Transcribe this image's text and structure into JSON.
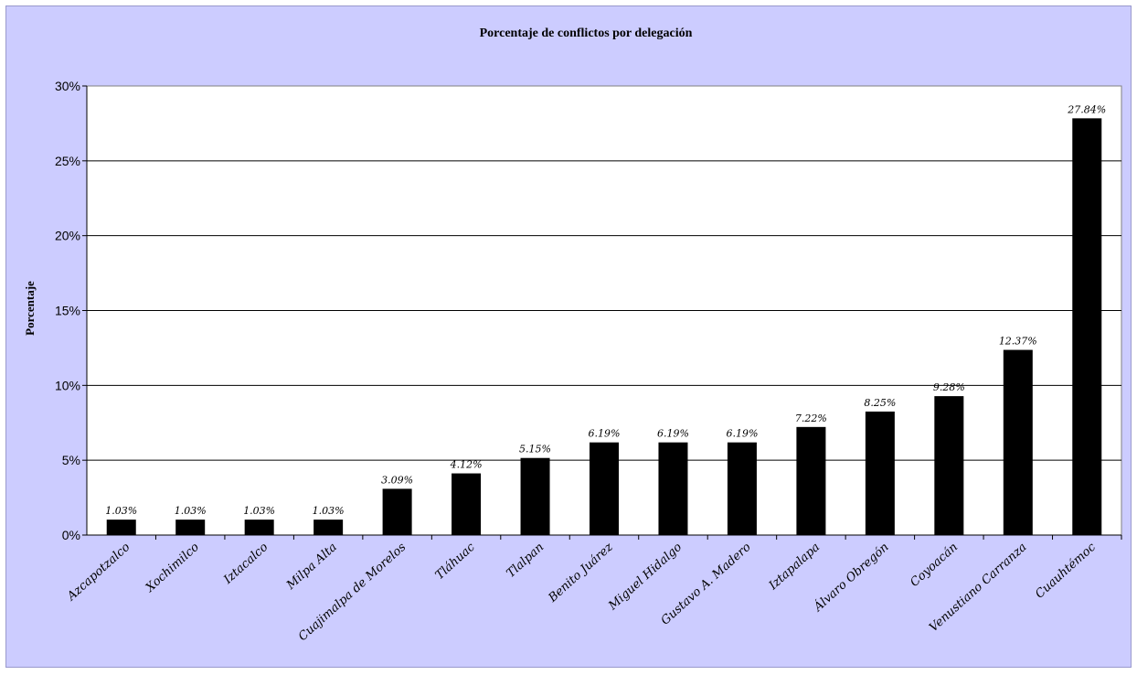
{
  "chart_data": {
    "type": "bar",
    "title": "Porcentaje de conflictos por delegación",
    "xlabel": "",
    "ylabel": "Porcentaje",
    "ylim": [
      0,
      30
    ],
    "yticks": [
      "0%",
      "5%",
      "10%",
      "15%",
      "20%",
      "25%",
      "30%"
    ],
    "grid": true,
    "legend": "none",
    "bar_color": "#000000",
    "background_color": "#ccccff",
    "plot_background_color": "#ffffff",
    "categories": [
      "Azcapotzalco",
      "Xochimilco",
      "Iztacalco",
      "Milpa Alta",
      "Cuajimalpa de Morelos",
      "Tláhuac",
      "Tlalpan",
      "Benito Juárez",
      "Miguel Hidalgo",
      "Gustavo A. Madero",
      "Iztapalapa",
      "Álvaro Obregón",
      "Coyoacán",
      "Venustiano Carranza",
      "Cuauhtémoc"
    ],
    "values": [
      1.03,
      1.03,
      1.03,
      1.03,
      3.09,
      4.12,
      5.15,
      6.19,
      6.19,
      6.19,
      7.22,
      8.25,
      9.28,
      12.37,
      27.84
    ],
    "data_labels": [
      "1.03%",
      "1.03%",
      "1.03%",
      "1.03%",
      "3.09%",
      "4.12%",
      "5.15%",
      "6.19%",
      "6.19%",
      "6.19%",
      "7.22%",
      "8.25%",
      "9.28%",
      "12.37%",
      "27.84%"
    ]
  }
}
